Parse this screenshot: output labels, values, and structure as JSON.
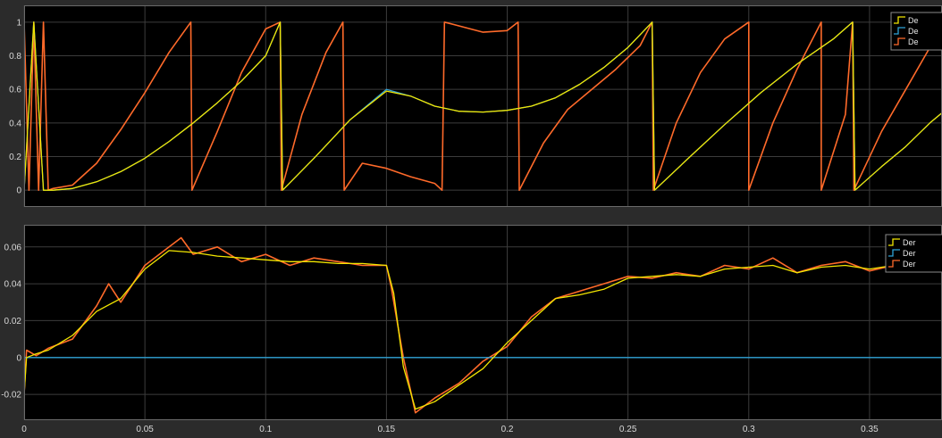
{
  "chart_data": [
    {
      "type": "line",
      "title": "",
      "xlabel": "",
      "ylabel": "",
      "xlim": [
        0,
        0.38
      ],
      "ylim": [
        -0.1,
        1.1
      ],
      "yticks": [
        0,
        0.2,
        0.4,
        0.6,
        0.8,
        1
      ],
      "ytick_labels": [
        "0",
        "0.2",
        "0.4",
        "0.6",
        "0.8",
        "1"
      ],
      "grid": true,
      "legend_position": "top-right",
      "legend_labels": [
        "De",
        "De",
        "De"
      ],
      "series": [
        {
          "color": "#f2e600",
          "x": [
            0,
            0.004,
            0.008,
            0.012,
            0.02,
            0.03,
            0.04,
            0.05,
            0.06,
            0.07,
            0.08,
            0.09,
            0.1,
            0.106,
            0.107,
            0.12,
            0.135,
            0.15,
            0.16,
            0.17,
            0.18,
            0.19,
            0.2,
            0.21,
            0.22,
            0.23,
            0.24,
            0.25,
            0.26,
            0.261,
            0.275,
            0.29,
            0.305,
            0.32,
            0.335,
            0.343,
            0.344,
            0.355,
            0.365,
            0.375,
            0.38
          ],
          "y": [
            0,
            1,
            0,
            0,
            0.01,
            0.05,
            0.11,
            0.19,
            0.29,
            0.4,
            0.52,
            0.65,
            0.8,
            1,
            0,
            0.19,
            0.42,
            0.59,
            0.56,
            0.5,
            0.47,
            0.465,
            0.475,
            0.5,
            0.55,
            0.63,
            0.73,
            0.85,
            1,
            0,
            0.19,
            0.39,
            0.58,
            0.75,
            0.9,
            1,
            0,
            0.14,
            0.26,
            0.4,
            0.46
          ]
        },
        {
          "color": "#2fa3d8",
          "x": [
            0,
            0.004,
            0.008,
            0.012,
            0.02,
            0.03,
            0.04,
            0.05,
            0.06,
            0.07,
            0.08,
            0.09,
            0.1,
            0.106,
            0.107,
            0.12,
            0.135,
            0.15,
            0.16,
            0.17,
            0.18,
            0.19,
            0.2,
            0.21,
            0.22,
            0.23,
            0.24,
            0.25,
            0.26,
            0.261,
            0.275,
            0.29,
            0.305,
            0.32,
            0.335,
            0.343,
            0.344,
            0.355,
            0.365,
            0.375,
            0.38
          ],
          "y": [
            0,
            1,
            0,
            0,
            0.01,
            0.05,
            0.11,
            0.19,
            0.29,
            0.4,
            0.52,
            0.65,
            0.8,
            1,
            0,
            0.19,
            0.42,
            0.6,
            0.56,
            0.5,
            0.47,
            0.465,
            0.475,
            0.5,
            0.55,
            0.63,
            0.73,
            0.85,
            1,
            0,
            0.19,
            0.39,
            0.58,
            0.75,
            0.9,
            1,
            0,
            0.14,
            0.26,
            0.4,
            0.46
          ]
        },
        {
          "color": "#ff6a2a",
          "x": [
            0,
            0.002,
            0.004,
            0.006,
            0.008,
            0.01,
            0.012,
            0.02,
            0.03,
            0.04,
            0.05,
            0.06,
            0.069,
            0.0695,
            0.08,
            0.09,
            0.1,
            0.106,
            0.1065,
            0.115,
            0.125,
            0.132,
            0.1325,
            0.14,
            0.15,
            0.16,
            0.17,
            0.173,
            0.174,
            0.19,
            0.2,
            0.2045,
            0.205,
            0.215,
            0.225,
            0.235,
            0.245,
            0.255,
            0.26,
            0.2605,
            0.27,
            0.28,
            0.29,
            0.3,
            0.3,
            0.31,
            0.32,
            0.33,
            0.33,
            0.34,
            0.343,
            0.3435,
            0.355,
            0.365,
            0.375,
            0.38
          ],
          "y": [
            1,
            0,
            1,
            0,
            1,
            0,
            0.01,
            0.03,
            0.16,
            0.36,
            0.58,
            0.82,
            1,
            0,
            0.35,
            0.7,
            0.96,
            1,
            0,
            0.45,
            0.82,
            1,
            0,
            0.16,
            0.13,
            0.08,
            0.04,
            0,
            1,
            0.94,
            0.95,
            1,
            0,
            0.28,
            0.48,
            0.6,
            0.72,
            0.86,
            1,
            0,
            0.4,
            0.7,
            0.9,
            1,
            0,
            0.4,
            0.72,
            1,
            0,
            0.45,
            1,
            0,
            0.35,
            0.6,
            0.85,
            0.98
          ]
        }
      ]
    },
    {
      "type": "line",
      "title": "",
      "xlabel": "",
      "ylabel": "",
      "xlim": [
        0,
        0.38
      ],
      "ylim": [
        -0.034,
        0.072
      ],
      "yticks": [
        -0.02,
        0,
        0.02,
        0.04,
        0.06
      ],
      "ytick_labels": [
        "-0.02",
        "0",
        "0.02",
        "0.04",
        "0.06"
      ],
      "xticks": [
        0,
        0.05,
        0.1,
        0.15,
        0.2,
        0.25,
        0.3,
        0.35
      ],
      "xtick_labels": [
        "0",
        "0.05",
        "0.1",
        "0.15",
        "0.2",
        "0.25",
        "0.3",
        "0.35"
      ],
      "grid": true,
      "legend_position": "top-right",
      "legend_labels": [
        "Der",
        "Der",
        "Der"
      ],
      "series": [
        {
          "color": "#f2e600",
          "x": [
            0,
            0.001,
            0.005,
            0.01,
            0.02,
            0.03,
            0.04,
            0.05,
            0.06,
            0.07,
            0.08,
            0.09,
            0.1,
            0.11,
            0.12,
            0.13,
            0.14,
            0.15,
            0.153,
            0.157,
            0.162,
            0.17,
            0.18,
            0.19,
            0.2,
            0.21,
            0.22,
            0.23,
            0.24,
            0.25,
            0.26,
            0.27,
            0.28,
            0.29,
            0.3,
            0.31,
            0.32,
            0.33,
            0.34,
            0.35,
            0.36,
            0.37,
            0.38
          ],
          "y": [
            -0.02,
            0,
            0.002,
            0.004,
            0.012,
            0.025,
            0.032,
            0.048,
            0.058,
            0.057,
            0.055,
            0.054,
            0.053,
            0.052,
            0.052,
            0.051,
            0.051,
            0.05,
            0.035,
            -0.005,
            -0.028,
            -0.024,
            -0.015,
            -0.006,
            0.008,
            0.02,
            0.032,
            0.034,
            0.037,
            0.043,
            0.044,
            0.045,
            0.044,
            0.048,
            0.049,
            0.05,
            0.046,
            0.049,
            0.05,
            0.048,
            0.05,
            0.049,
            0.05
          ]
        },
        {
          "color": "#2fa3d8",
          "x": [
            0,
            0.38
          ],
          "y": [
            0,
            0
          ]
        },
        {
          "color": "#ff6a2a",
          "x": [
            0,
            0.001,
            0.005,
            0.01,
            0.02,
            0.03,
            0.035,
            0.04,
            0.05,
            0.06,
            0.065,
            0.07,
            0.08,
            0.09,
            0.1,
            0.11,
            0.12,
            0.13,
            0.14,
            0.15,
            0.152,
            0.157,
            0.162,
            0.17,
            0.18,
            0.19,
            0.2,
            0.21,
            0.22,
            0.23,
            0.24,
            0.25,
            0.26,
            0.27,
            0.28,
            0.29,
            0.3,
            0.31,
            0.32,
            0.33,
            0.34,
            0.35,
            0.36,
            0.37,
            0.38
          ],
          "y": [
            -0.02,
            0.004,
            0.001,
            0.005,
            0.01,
            0.028,
            0.04,
            0.03,
            0.05,
            0.06,
            0.065,
            0.056,
            0.06,
            0.052,
            0.056,
            0.05,
            0.054,
            0.052,
            0.05,
            0.05,
            0.038,
            0.0,
            -0.03,
            -0.022,
            -0.014,
            -0.002,
            0.006,
            0.022,
            0.032,
            0.036,
            0.04,
            0.044,
            0.043,
            0.046,
            0.044,
            0.05,
            0.048,
            0.054,
            0.046,
            0.05,
            0.052,
            0.047,
            0.05,
            0.048,
            0.052
          ]
        }
      ]
    }
  ]
}
